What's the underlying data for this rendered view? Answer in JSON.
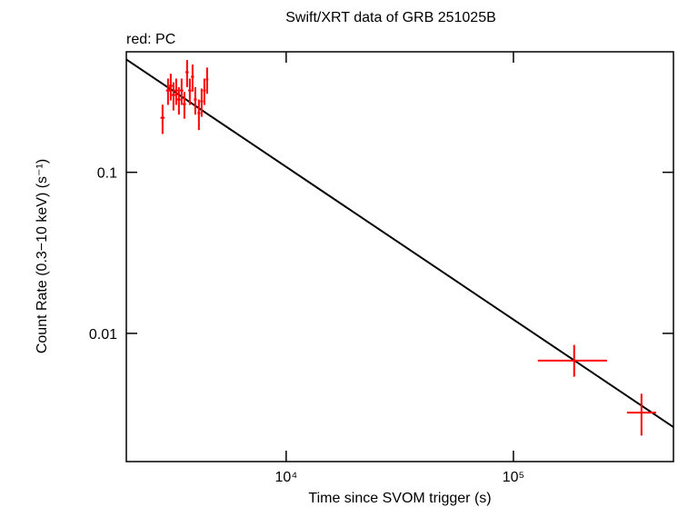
{
  "chart_data": {
    "type": "scatter",
    "title": "Swift/XRT data of GRB 251025B",
    "annotation": "red: PC",
    "xlabel": "Time since SVOM trigger (s)",
    "ylabel": "Count Rate (0.3−10 keV) (s⁻¹)",
    "xlog": true,
    "ylog": true,
    "xlim": [
      1980,
      506000
    ],
    "ylim": [
      0.0016,
      0.56
    ],
    "xticks": [
      {
        "value": 10000,
        "label": "10⁴"
      },
      {
        "value": 100000,
        "label": "10⁵"
      }
    ],
    "yticks": [
      0.1,
      0.01
    ],
    "series": [
      {
        "color": "#ff0000",
        "x": [
          2858,
          3020,
          3105,
          3192,
          3281,
          3373,
          3467,
          3565,
          3664,
          3767,
          3873,
          3981,
          4130,
          4246,
          4365,
          4487,
          185000,
          366000
        ],
        "xerr_minus": [
          60,
          60,
          60,
          60,
          60,
          60,
          60,
          60,
          60,
          60,
          60,
          60,
          60,
          60,
          60,
          60,
          57000,
          50000
        ],
        "xerr_plus": [
          60,
          60,
          60,
          60,
          60,
          60,
          60,
          60,
          60,
          60,
          60,
          60,
          60,
          60,
          60,
          60,
          73000,
          59000
        ],
        "values": [
          0.218,
          0.322,
          0.344,
          0.302,
          0.322,
          0.283,
          0.322,
          0.265,
          0.418,
          0.322,
          0.392,
          0.283,
          0.233,
          0.276,
          0.322,
          0.377,
          0.00678,
          0.00322
        ],
        "yerr_minus": [
          0.045,
          0.06,
          0.065,
          0.06,
          0.06,
          0.055,
          0.06,
          0.05,
          0.08,
          0.06,
          0.075,
          0.055,
          0.05,
          0.055,
          0.06,
          0.07,
          0.0014,
          0.0009
        ],
        "yerr_plus": [
          0.045,
          0.06,
          0.065,
          0.06,
          0.06,
          0.055,
          0.06,
          0.05,
          0.08,
          0.06,
          0.075,
          0.055,
          0.05,
          0.055,
          0.06,
          0.07,
          0.0017,
          0.001
        ]
      }
    ],
    "fit": {
      "color": "#000000",
      "x": [
        1980,
        506000
      ],
      "values": [
        0.502,
        0.00262
      ]
    }
  }
}
